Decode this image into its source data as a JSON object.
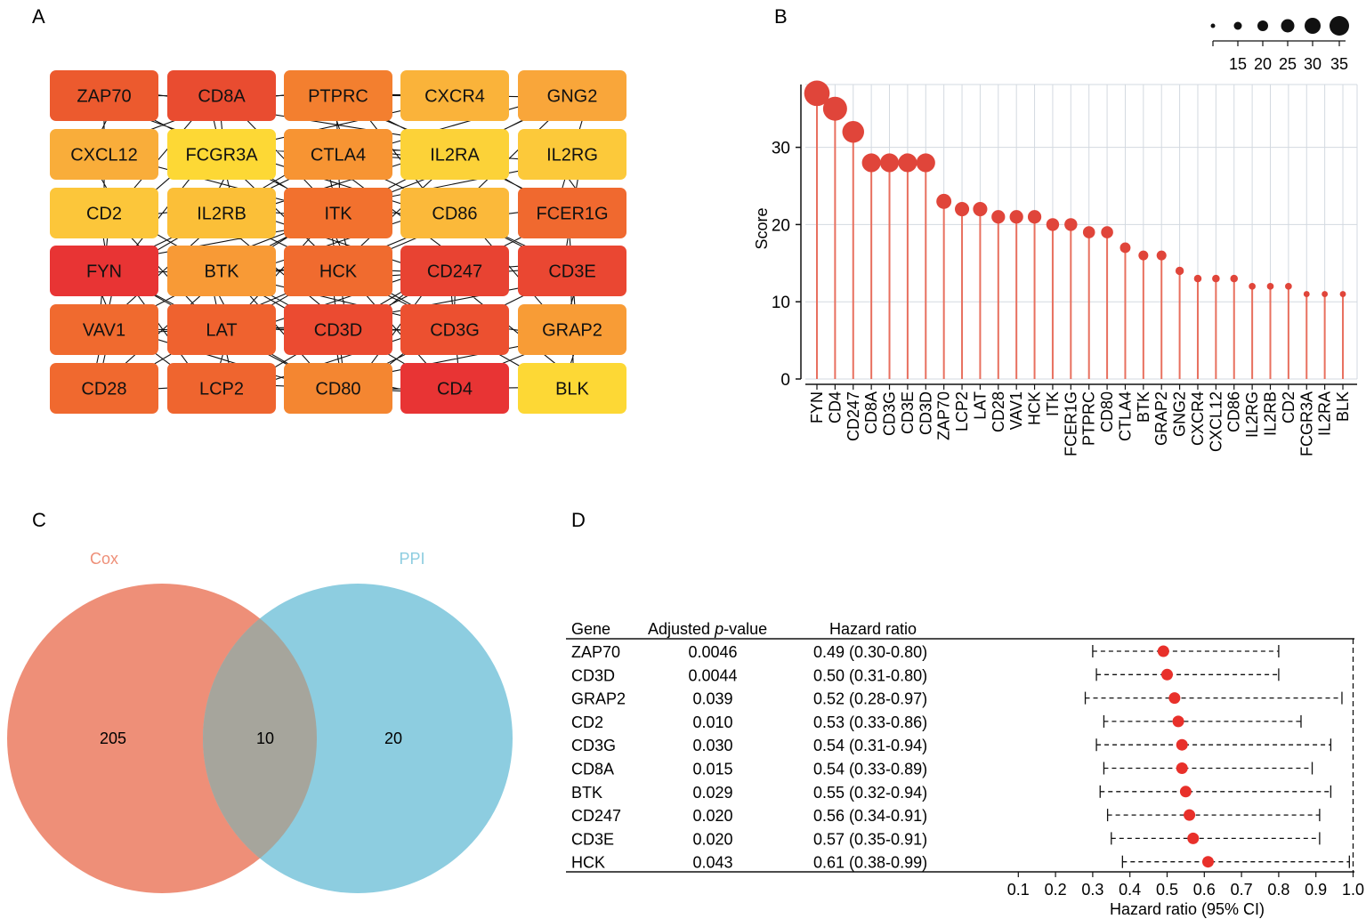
{
  "panels": {
    "a": "A",
    "b": "B",
    "c": "C",
    "d": "D"
  },
  "colors": {
    "score_point": "#e0453a",
    "score_stem": "#e8705f",
    "venn_left": "#ee8f78",
    "venn_right": "#8dcde0",
    "venn_overlap": "#a6a59c",
    "hr_point": "#e8302a"
  },
  "chart_data": [
    {
      "panel": "A",
      "type": "network",
      "title": "",
      "rows": [
        [
          {
            "gene": "ZAP70",
            "color": "#ec5a2e"
          },
          {
            "gene": "CD8A",
            "color": "#e94c30"
          },
          {
            "gene": "PTPRC",
            "color": "#f37f2f"
          },
          {
            "gene": "CXCR4",
            "color": "#fab33a"
          },
          {
            "gene": "GNG2",
            "color": "#f9a63a"
          }
        ],
        [
          {
            "gene": "CXCL12",
            "color": "#f9ad3a"
          },
          {
            "gene": "FCGR3A",
            "color": "#fdd835"
          },
          {
            "gene": "CTLA4",
            "color": "#f79433"
          },
          {
            "gene": "IL2RA",
            "color": "#fcd238"
          },
          {
            "gene": "IL2RG",
            "color": "#fcc93a"
          }
        ],
        [
          {
            "gene": "CD2",
            "color": "#fcc63a"
          },
          {
            "gene": "IL2RB",
            "color": "#fbbf38"
          },
          {
            "gene": "ITK",
            "color": "#f2712e"
          },
          {
            "gene": "CD86",
            "color": "#fbb93a"
          },
          {
            "gene": "FCER1G",
            "color": "#f0692f"
          }
        ],
        [
          {
            "gene": "FYN",
            "color": "#e83434"
          },
          {
            "gene": "BTK",
            "color": "#f89a36"
          },
          {
            "gene": "HCK",
            "color": "#f06b2f"
          },
          {
            "gene": "CD247",
            "color": "#e84332"
          },
          {
            "gene": "CD3E",
            "color": "#ea4732"
          }
        ],
        [
          {
            "gene": "VAV1",
            "color": "#f06a2f"
          },
          {
            "gene": "LAT",
            "color": "#ef622f"
          },
          {
            "gene": "CD3D",
            "color": "#eb4b31"
          },
          {
            "gene": "CD3G",
            "color": "#ec5030"
          },
          {
            "gene": "GRAP2",
            "color": "#f89c36"
          }
        ],
        [
          {
            "gene": "CD28",
            "color": "#f0692f"
          },
          {
            "gene": "LCP2",
            "color": "#ef652f"
          },
          {
            "gene": "CD80",
            "color": "#f48631"
          },
          {
            "gene": "CD4",
            "color": "#e83434"
          },
          {
            "gene": "BLK",
            "color": "#fdd835"
          }
        ]
      ]
    },
    {
      "panel": "B",
      "type": "scatter",
      "title": "",
      "xlabel": "",
      "ylabel": "Score",
      "ylim": [
        0,
        38
      ],
      "yticks": [
        0,
        10,
        20,
        30
      ],
      "categories": [
        "FYN",
        "CD4",
        "CD247",
        "CD8A",
        "CD3G",
        "CD3E",
        "CD3D",
        "ZAP70",
        "LCP2",
        "LAT",
        "CD28",
        "VAV1",
        "HCK",
        "ITK",
        "FCER1G",
        "PTPRC",
        "CD80",
        "CTLA4",
        "BTK",
        "GRAP2",
        "GNG2",
        "CXCR4",
        "CXCL12",
        "CD86",
        "IL2RG",
        "IL2RB",
        "CD2",
        "FCGR3A",
        "IL2RA",
        "BLK"
      ],
      "values": [
        37,
        35,
        32,
        28,
        28,
        28,
        28,
        23,
        22,
        22,
        21,
        21,
        21,
        20,
        20,
        19,
        19,
        17,
        16,
        16,
        14,
        13,
        13,
        13,
        12,
        12,
        12,
        11,
        11,
        11
      ],
      "size_legend": {
        "values": [
          10,
          15,
          20,
          25,
          30,
          35
        ],
        "labels": [
          "",
          "15",
          "20",
          "25",
          "30",
          "35"
        ]
      }
    },
    {
      "panel": "C",
      "type": "venn",
      "title": "",
      "sets": [
        {
          "name": "Cox",
          "only": "205"
        },
        {
          "name": "PPI",
          "only": "20"
        }
      ],
      "intersection": "10"
    },
    {
      "panel": "D",
      "type": "forest",
      "title": "",
      "headers": {
        "gene": "Gene",
        "pvalue_prefix": "Adjusted ",
        "pvalue_italic": "p",
        "pvalue_suffix": "-value",
        "hr": "Hazard ratio"
      },
      "xlabel": "Hazard ratio (95% CI)",
      "xlim": [
        0,
        1.0
      ],
      "xticks": [
        "0.1",
        "0.2",
        "0.3",
        "0.4",
        "0.5",
        "0.6",
        "0.7",
        "0.8",
        "0.9",
        "1.0"
      ],
      "rows": [
        {
          "gene": "ZAP70",
          "pvalue": "0.0046",
          "hr_text": "0.49 (0.30-0.80)",
          "hr": 0.49,
          "lo": 0.3,
          "hi": 0.8
        },
        {
          "gene": "CD3D",
          "pvalue": "0.0044",
          "hr_text": "0.50 (0.31-0.80)",
          "hr": 0.5,
          "lo": 0.31,
          "hi": 0.8
        },
        {
          "gene": "GRAP2",
          "pvalue": "0.039",
          "hr_text": "0.52 (0.28-0.97)",
          "hr": 0.52,
          "lo": 0.28,
          "hi": 0.97
        },
        {
          "gene": "CD2",
          "pvalue": "0.010",
          "hr_text": "0.53 (0.33-0.86)",
          "hr": 0.53,
          "lo": 0.33,
          "hi": 0.86
        },
        {
          "gene": "CD3G",
          "pvalue": "0.030",
          "hr_text": "0.54 (0.31-0.94)",
          "hr": 0.54,
          "lo": 0.31,
          "hi": 0.94
        },
        {
          "gene": "CD8A",
          "pvalue": "0.015",
          "hr_text": "0.54 (0.33-0.89)",
          "hr": 0.54,
          "lo": 0.33,
          "hi": 0.89
        },
        {
          "gene": "BTK",
          "pvalue": "0.029",
          "hr_text": "0.55 (0.32-0.94)",
          "hr": 0.55,
          "lo": 0.32,
          "hi": 0.94
        },
        {
          "gene": "CD247",
          "pvalue": "0.020",
          "hr_text": "0.56 (0.34-0.91)",
          "hr": 0.56,
          "lo": 0.34,
          "hi": 0.91
        },
        {
          "gene": "CD3E",
          "pvalue": "0.020",
          "hr_text": "0.57 (0.35-0.91)",
          "hr": 0.57,
          "lo": 0.35,
          "hi": 0.91
        },
        {
          "gene": "HCK",
          "pvalue": "0.043",
          "hr_text": "0.61 (0.38-0.99)",
          "hr": 0.61,
          "lo": 0.38,
          "hi": 0.99
        }
      ]
    }
  ]
}
